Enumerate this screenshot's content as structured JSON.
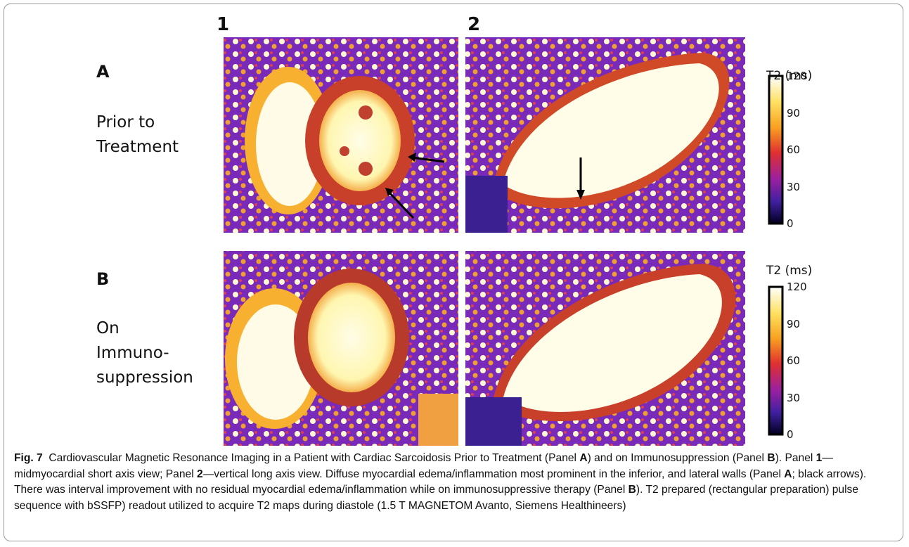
{
  "figure": {
    "column_labels": [
      "1",
      "2"
    ],
    "rows": [
      {
        "letter": "A",
        "lines": [
          "Prior to",
          "Treatment"
        ]
      },
      {
        "letter": "B",
        "lines": [
          "On",
          "Immuno-",
          "suppression"
        ]
      }
    ],
    "colorbar": {
      "title": "T2 (ms)",
      "ticks": [
        120,
        90,
        60,
        30,
        0
      ]
    },
    "caption": {
      "label": "Fig. 7",
      "runs": [
        "Cardiovascular Magnetic Resonance Imaging in a Patient with Cardiac Sarcoidosis Prior to Treatment (Panel ",
        "A",
        ") and on Immunosuppression (Panel ",
        "B",
        "). Panel ",
        "1",
        "—midmyocardial short axis view; Panel ",
        "2",
        "—vertical long axis view. Diffuse myocardial edema/inflammation most prominent in the inferior, and lateral walls (Panel ",
        "A",
        "; black arrows). There was interval improvement with no residual myocardial edema/inflammation while on immunosuppressive therapy (Panel ",
        "B",
        "). T2 prepared (rectangular preparation) pulse sequence with bSSFP) readout utilized to acquire T2 maps during diastole (1.5 T MAGNETOM Avanto, Siemens Healthineers)"
      ]
    }
  }
}
